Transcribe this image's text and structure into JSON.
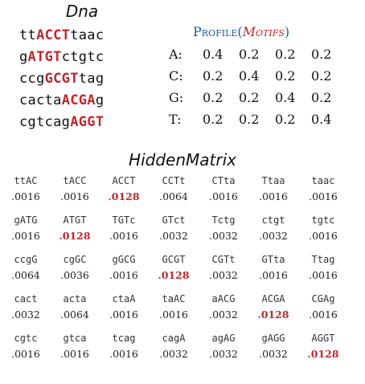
{
  "dna": {
    "title": "Dna",
    "rows": [
      {
        "pre": "tt",
        "motif": "ACCT",
        "post": "taac"
      },
      {
        "pre": "g",
        "motif": "ATGT",
        "post": "ctgtc"
      },
      {
        "pre": "ccg",
        "motif": "GCGT",
        "post": "tag"
      },
      {
        "pre": "cacta",
        "motif": "ACGA",
        "post": "g"
      },
      {
        "pre": "cgtcag",
        "motif": "AGGT",
        "post": ""
      }
    ]
  },
  "profile": {
    "title_main": "Profile",
    "title_paren_open": "(",
    "title_arg": "Motifs",
    "title_paren_close": ")",
    "rows": [
      {
        "label": "A:",
        "values": [
          "0.4",
          "0.2",
          "0.2",
          "0.2"
        ]
      },
      {
        "label": "C:",
        "values": [
          "0.2",
          "0.4",
          "0.2",
          "0.2"
        ]
      },
      {
        "label": "G:",
        "values": [
          "0.2",
          "0.2",
          "0.4",
          "0.2"
        ]
      },
      {
        "label": "T:",
        "values": [
          "0.2",
          "0.2",
          "0.2",
          "0.4"
        ]
      }
    ]
  },
  "hidden_matrix": {
    "title": "HiddenMatrix",
    "rows": [
      [
        {
          "kmer": "ttAC",
          "p": ".0016",
          "hi": false
        },
        {
          "kmer": "tACC",
          "p": ".0016",
          "hi": false
        },
        {
          "kmer": "ACCT",
          "p": ".0128",
          "hi": true
        },
        {
          "kmer": "CCTt",
          "p": ".0064",
          "hi": false
        },
        {
          "kmer": "CTta",
          "p": ".0016",
          "hi": false
        },
        {
          "kmer": "Ttaa",
          "p": ".0016",
          "hi": false
        },
        {
          "kmer": "taac",
          "p": ".0016",
          "hi": false
        }
      ],
      [
        {
          "kmer": "gATG",
          "p": ".0016",
          "hi": false
        },
        {
          "kmer": "ATGT",
          "p": ".0128",
          "hi": true
        },
        {
          "kmer": "TGTc",
          "p": ".0016",
          "hi": false
        },
        {
          "kmer": "GTct",
          "p": ".0032",
          "hi": false
        },
        {
          "kmer": "Tctg",
          "p": ".0032",
          "hi": false
        },
        {
          "kmer": "ctgt",
          "p": ".0032",
          "hi": false
        },
        {
          "kmer": "tgtc",
          "p": ".0016",
          "hi": false
        }
      ],
      [
        {
          "kmer": "ccgG",
          "p": ".0064",
          "hi": false
        },
        {
          "kmer": "cgGC",
          "p": ".0036",
          "hi": false
        },
        {
          "kmer": "gGCG",
          "p": ".0016",
          "hi": false
        },
        {
          "kmer": "GCGT",
          "p": ".0128",
          "hi": true
        },
        {
          "kmer": "CGTt",
          "p": ".0032",
          "hi": false
        },
        {
          "kmer": "GTta",
          "p": ".0016",
          "hi": false
        },
        {
          "kmer": "Ttag",
          "p": ".0016",
          "hi": false
        }
      ],
      [
        {
          "kmer": "cact",
          "p": ".0032",
          "hi": false
        },
        {
          "kmer": "acta",
          "p": ".0064",
          "hi": false
        },
        {
          "kmer": "ctaA",
          "p": ".0016",
          "hi": false
        },
        {
          "kmer": "taAC",
          "p": ".0016",
          "hi": false
        },
        {
          "kmer": "aACG",
          "p": ".0032",
          "hi": false
        },
        {
          "kmer": "ACGA",
          "p": ".0128",
          "hi": true
        },
        {
          "kmer": "CGAg",
          "p": ".0016",
          "hi": false
        }
      ],
      [
        {
          "kmer": "cgtc",
          "p": ".0016",
          "hi": false
        },
        {
          "kmer": "gtca",
          "p": ".0016",
          "hi": false
        },
        {
          "kmer": "tcag",
          "p": ".0016",
          "hi": false
        },
        {
          "kmer": "cagA",
          "p": ".0032",
          "hi": false
        },
        {
          "kmer": "agAG",
          "p": ".0032",
          "hi": false
        },
        {
          "kmer": "gAGG",
          "p": ".0032",
          "hi": false
        },
        {
          "kmer": "AGGT",
          "p": ".0128",
          "hi": true
        }
      ]
    ]
  },
  "colors": {
    "motif": "#c0282d",
    "profile_title": "#1a5a9a"
  }
}
